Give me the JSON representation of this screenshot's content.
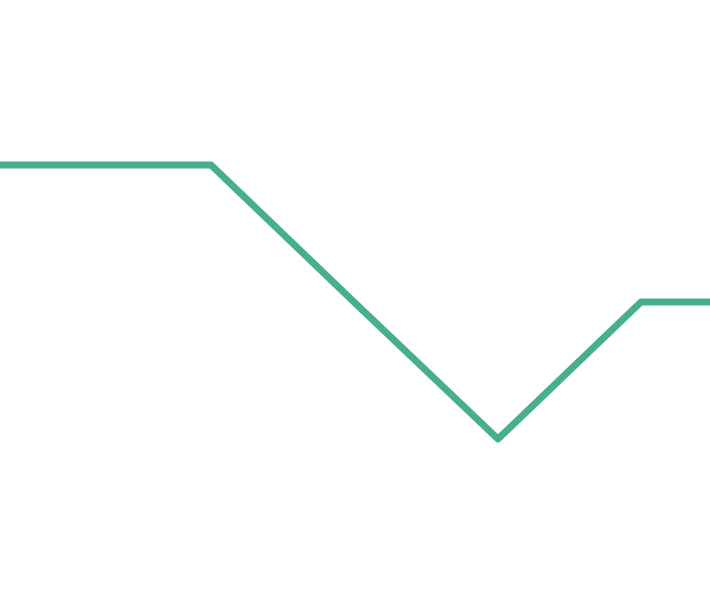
{
  "chart_data": {
    "type": "line",
    "title": "",
    "xlabel": "",
    "ylabel": "",
    "grid": false,
    "legend": "none",
    "x": [
      0,
      1,
      2,
      3,
      4,
      5
    ],
    "series": [
      {
        "color": "#47b08a",
        "values": [
          3.0,
          3.0,
          2.0,
          1.0,
          2.0,
          2.0
        ]
      }
    ],
    "xlim": [
      0,
      5
    ],
    "ylim": [
      0,
      4
    ]
  }
}
